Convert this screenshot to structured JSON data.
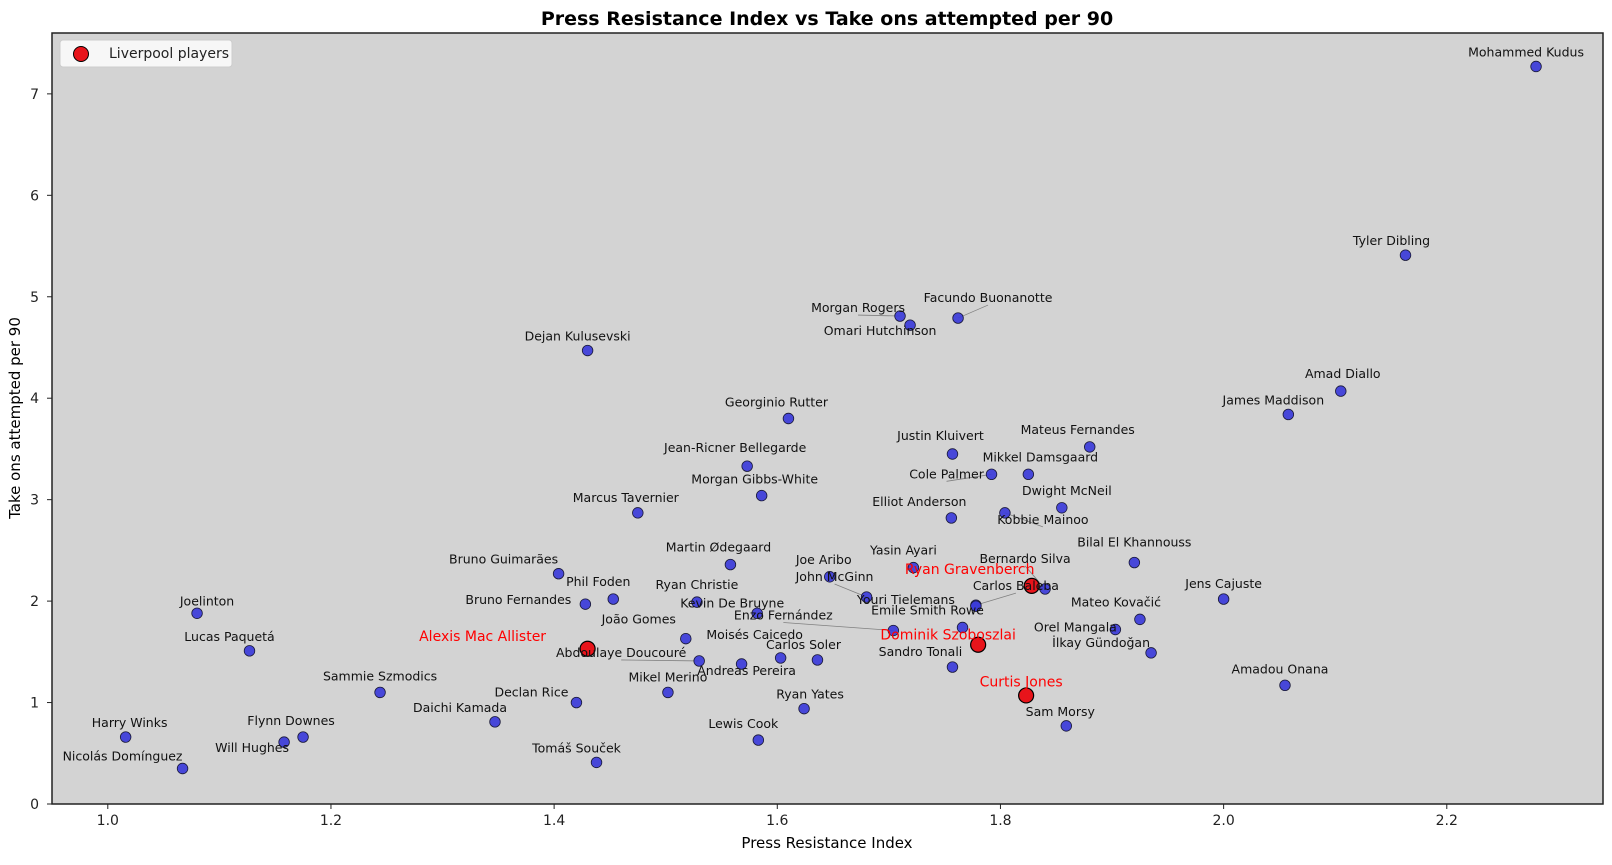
{
  "chart_data": {
    "type": "scatter",
    "title": "Press Resistance Index vs Take ons attempted per 90",
    "xlabel": "Press Resistance Index",
    "ylabel": "Take ons attempted per 90",
    "xlim": [
      0.95,
      2.34
    ],
    "ylim": [
      0,
      7.6
    ],
    "xticks": [
      1.0,
      1.2,
      1.4,
      1.6,
      1.8,
      2.0,
      2.2
    ],
    "xtick_labels": [
      "1.0",
      "1.2",
      "1.4",
      "1.6",
      "1.8",
      "2.0",
      "2.2"
    ],
    "yticks": [
      0,
      1,
      2,
      3,
      4,
      5,
      6,
      7
    ],
    "ytick_labels": [
      "0",
      "1",
      "2",
      "3",
      "4",
      "5",
      "6",
      "7"
    ],
    "grid": false,
    "legend": {
      "position": "top-left",
      "entries": [
        "Liverpool players"
      ]
    },
    "colors": {
      "plot_background": "#d3d3d3",
      "default_marker": "#3b3bd9",
      "highlight_marker": "#e8141b",
      "highlight_label": "#ff0000",
      "default_label": "#111111"
    },
    "series": [
      {
        "name": "Liverpool players",
        "highlight": true,
        "points": [
          {
            "label": "Alexis Mac Allister",
            "x": 1.43,
            "y": 1.53
          },
          {
            "label": "Ryan Gravenberch",
            "x": 1.828,
            "y": 2.15
          },
          {
            "label": "Dominik Szoboszlai",
            "x": 1.78,
            "y": 1.57
          },
          {
            "label": "Curtis Jones",
            "x": 1.823,
            "y": 1.07
          }
        ]
      },
      {
        "highlight": false,
        "points": [
          {
            "label": "Mohammed Kudus",
            "x": 2.28,
            "y": 7.27
          },
          {
            "label": "Tyler Dibling",
            "x": 2.163,
            "y": 5.41
          },
          {
            "label": "Facundo Buonanotte",
            "x": 1.762,
            "y": 4.79
          },
          {
            "label": "Morgan Rogers",
            "x": 1.71,
            "y": 4.81
          },
          {
            "label": "Omari Hutchinson",
            "x": 1.719,
            "y": 4.72
          },
          {
            "label": "Dejan Kulusevski",
            "x": 1.43,
            "y": 4.47
          },
          {
            "label": "Amad Diallo",
            "x": 2.105,
            "y": 4.07
          },
          {
            "label": "James Maddison",
            "x": 2.058,
            "y": 3.84
          },
          {
            "label": "Georginio Rutter",
            "x": 1.61,
            "y": 3.8
          },
          {
            "label": "Mateus Fernandes",
            "x": 1.88,
            "y": 3.52
          },
          {
            "label": "Justin Kluivert",
            "x": 1.757,
            "y": 3.45
          },
          {
            "label": "Jean-Ricner Bellegarde",
            "x": 1.573,
            "y": 3.33
          },
          {
            "label": "Mikkel Damsgaard",
            "x": 1.825,
            "y": 3.25
          },
          {
            "label": "Cole Palmer",
            "x": 1.792,
            "y": 3.25
          },
          {
            "label": "Morgan Gibbs-White",
            "x": 1.586,
            "y": 3.04
          },
          {
            "label": "Dwight McNeil",
            "x": 1.855,
            "y": 2.92
          },
          {
            "label": "Marcus Tavernier",
            "x": 1.475,
            "y": 2.87
          },
          {
            "label": "Kobbie Mainoo",
            "x": 1.804,
            "y": 2.87
          },
          {
            "label": "Elliot Anderson",
            "x": 1.756,
            "y": 2.82
          },
          {
            "label": "Bilal El Khannouss",
            "x": 1.92,
            "y": 2.38
          },
          {
            "label": "Martin Ødegaard",
            "x": 1.558,
            "y": 2.36
          },
          {
            "label": "Yasin Ayari",
            "x": 1.722,
            "y": 2.33
          },
          {
            "label": "Bruno Guimarães",
            "x": 1.404,
            "y": 2.27
          },
          {
            "label": "Joe Aribo",
            "x": 1.647,
            "y": 2.24
          },
          {
            "label": "Bernardo Silva",
            "x": 1.84,
            "y": 2.12
          },
          {
            "label": "Phil Foden",
            "x": 1.453,
            "y": 2.02
          },
          {
            "label": "John McGinn",
            "x": 1.68,
            "y": 2.04
          },
          {
            "label": "Jens Cajuste",
            "x": 2.0,
            "y": 2.02
          },
          {
            "label": "Ryan Christie",
            "x": 1.528,
            "y": 1.99
          },
          {
            "label": "Bruno Fernandes",
            "x": 1.428,
            "y": 1.97
          },
          {
            "label": "Carlos Baleba",
            "x": 1.778,
            "y": 1.96
          },
          {
            "label": "Youri Tielemans",
            "x": 1.778,
            "y": 1.95
          },
          {
            "label": "Joelinton",
            "x": 1.08,
            "y": 1.88
          },
          {
            "label": "Kevin De Bruyne",
            "x": 1.582,
            "y": 1.88
          },
          {
            "label": "Mateo Kovačić",
            "x": 1.925,
            "y": 1.82
          },
          {
            "label": "Emile Smith Rowe",
            "x": 1.766,
            "y": 1.74
          },
          {
            "label": "Orel Mangala",
            "x": 1.903,
            "y": 1.72
          },
          {
            "label": "Enzo Fernández",
            "x": 1.704,
            "y": 1.71
          },
          {
            "label": "João Gomes",
            "x": 1.518,
            "y": 1.63
          },
          {
            "label": "Lucas Paquetá",
            "x": 1.127,
            "y": 1.51
          },
          {
            "label": "İlkay Gündoğan",
            "x": 1.935,
            "y": 1.49
          },
          {
            "label": "Moisés Caicedo",
            "x": 1.603,
            "y": 1.44
          },
          {
            "label": "Carlos Soler",
            "x": 1.636,
            "y": 1.42
          },
          {
            "label": "Abdoulaye Doucouré",
            "x": 1.53,
            "y": 1.41
          },
          {
            "label": "Andreas Pereira",
            "x": 1.568,
            "y": 1.38
          },
          {
            "label": "Sandro Tonali",
            "x": 1.757,
            "y": 1.35
          },
          {
            "label": "Amadou Onana",
            "x": 2.055,
            "y": 1.17
          },
          {
            "label": "Sammie Szmodics",
            "x": 1.244,
            "y": 1.1
          },
          {
            "label": "Mikel Merino",
            "x": 1.502,
            "y": 1.1
          },
          {
            "label": "Declan Rice",
            "x": 1.42,
            "y": 1.0
          },
          {
            "label": "Ryan Yates",
            "x": 1.624,
            "y": 0.94
          },
          {
            "label": "Daichi Kamada",
            "x": 1.347,
            "y": 0.81
          },
          {
            "label": "Sam Morsy",
            "x": 1.859,
            "y": 0.77
          },
          {
            "label": "Harry Winks",
            "x": 1.016,
            "y": 0.66
          },
          {
            "label": "Flynn Downes",
            "x": 1.175,
            "y": 0.66
          },
          {
            "label": "Lewis Cook",
            "x": 1.583,
            "y": 0.63
          },
          {
            "label": "Will Hughes",
            "x": 1.158,
            "y": 0.61
          },
          {
            "label": "Tomáš Souček",
            "x": 1.438,
            "y": 0.41
          },
          {
            "label": "Nicolás Domínguez",
            "x": 1.067,
            "y": 0.35
          }
        ]
      }
    ]
  }
}
